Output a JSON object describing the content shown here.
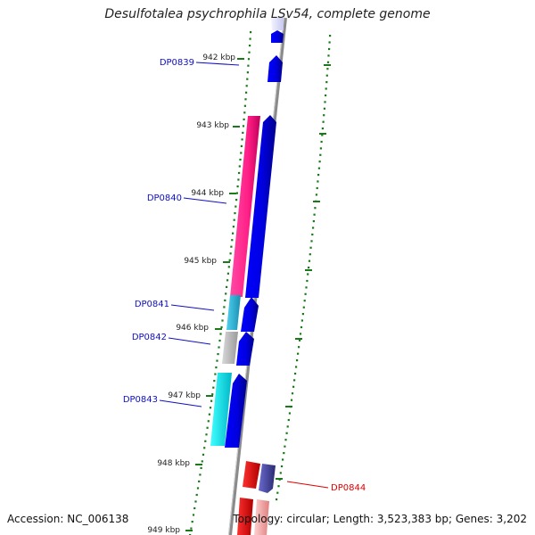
{
  "title": "Desulfotalea psychrophila LSv54, complete genome",
  "footer": {
    "accession": "Accession: NC_006138",
    "summary": "Topology: circular; Length: 3,523,383 bp; Genes: 3,202"
  },
  "colors": {
    "ruler_tick": "#1a7a1a",
    "backbone": "#888888",
    "label_forward": "#1010c0",
    "label_reverse": "#e00000",
    "cds_forward": "#0000e0"
  },
  "scale_labels": [
    "942 kbp",
    "943 kbp",
    "944 kbp",
    "945 kbp",
    "946 kbp",
    "947 kbp",
    "948 kbp",
    "949 kbp"
  ],
  "genes": [
    {
      "id": "DP0839",
      "strand": "forward"
    },
    {
      "id": "DP0840",
      "strand": "forward",
      "feature_color": "#ff2a8a"
    },
    {
      "id": "DP0841",
      "strand": "forward",
      "feature_color": "#2ab7d9"
    },
    {
      "id": "DP0842",
      "strand": "forward",
      "feature_color": "#b9b9b9"
    },
    {
      "id": "DP0843",
      "strand": "forward",
      "feature_color": "#10e0e0"
    },
    {
      "id": "DP0844",
      "strand": "reverse",
      "feature_color": "#ee1111"
    }
  ]
}
